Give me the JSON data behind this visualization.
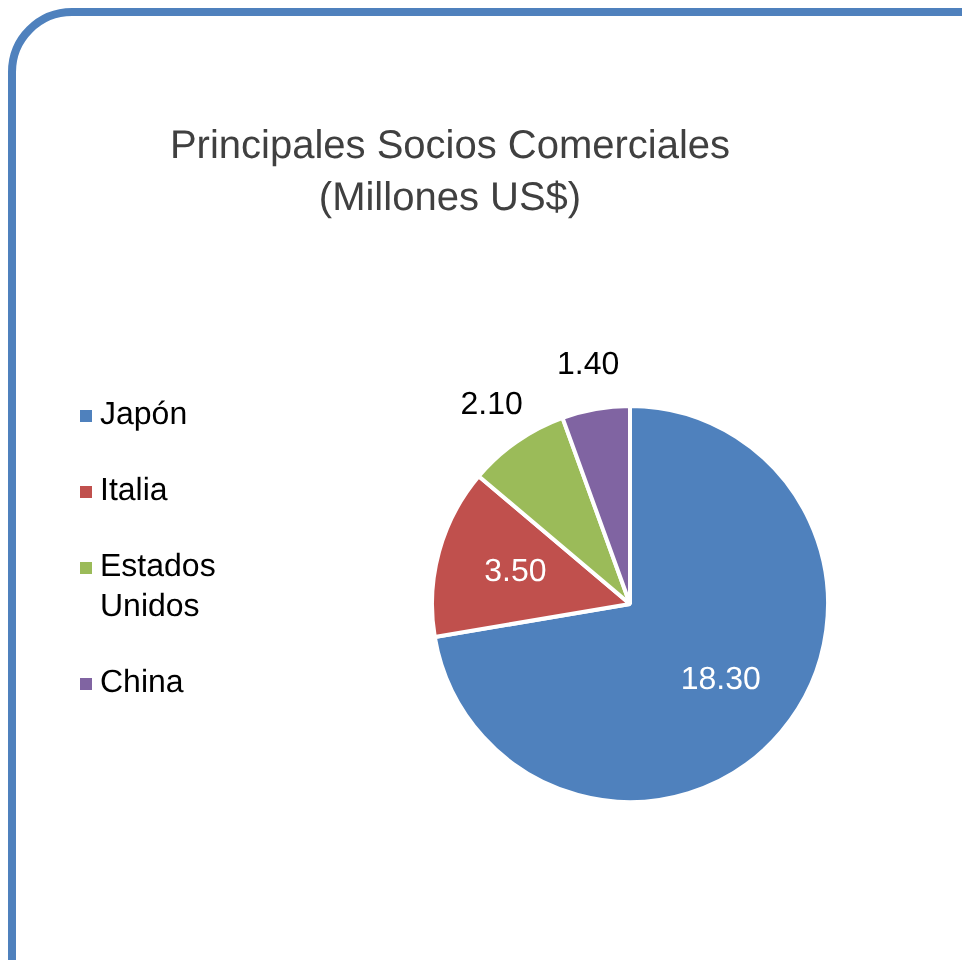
{
  "chart_data": {
    "type": "pie",
    "title": "Principales Socios Comerciales (Millones US$)",
    "categories": [
      "Japón",
      "Italia",
      "Estados Unidos",
      "China"
    ],
    "values": [
      18.3,
      3.5,
      2.1,
      1.4
    ],
    "colors": [
      "#4f81bd",
      "#c0504d",
      "#9bbb59",
      "#8064a2"
    ],
    "value_labels": [
      "18.30",
      "3.50",
      "2.10",
      "1.40"
    ],
    "legend": "left"
  }
}
